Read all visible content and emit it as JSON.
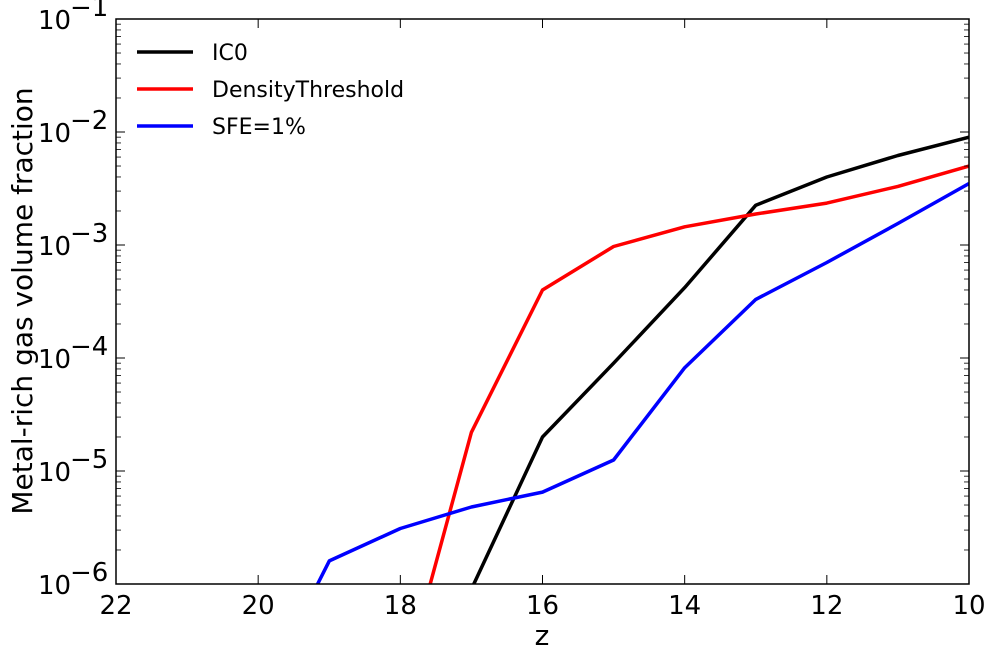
{
  "chart_data": {
    "type": "line",
    "xlabel": "z",
    "ylabel": "Metal-rich gas volume fraction",
    "xlim": [
      22,
      10
    ],
    "ylim": [
      1e-06,
      0.1
    ],
    "yscale": "log",
    "x_ticks": [
      22,
      20,
      18,
      16,
      14,
      12,
      10
    ],
    "x_tick_labels": [
      "22",
      "20",
      "18",
      "16",
      "14",
      "12",
      "10"
    ],
    "y_tick_exponents": [
      -6,
      -5,
      -4,
      -3,
      -2,
      -1
    ],
    "y_tick_base": "10",
    "y_tick_sup": [
      "−6",
      "−5",
      "−4",
      "−3",
      "−2",
      "−1"
    ],
    "legend_position": "top-left",
    "series": [
      {
        "name": "IC0",
        "color": "#000000",
        "x": [
          17.0,
          16.0,
          15.0,
          14.0,
          13.0,
          12.0,
          11.0,
          10.0
        ],
        "y": [
          9e-07,
          2e-05,
          9e-05,
          0.00042,
          0.00225,
          0.004,
          0.0062,
          0.009
        ]
      },
      {
        "name": "DensityThreshold",
        "color": "#ff0000",
        "x": [
          17.6,
          17.0,
          16.0,
          15.0,
          14.0,
          13.0,
          12.0,
          11.0,
          10.0
        ],
        "y": [
          9e-07,
          2.2e-05,
          0.0004,
          0.00097,
          0.00145,
          0.00188,
          0.00235,
          0.0033,
          0.005
        ]
      },
      {
        "name": "SFE=1%",
        "color": "#0000ff",
        "x": [
          19.2,
          19.0,
          18.0,
          17.0,
          16.0,
          15.0,
          14.0,
          13.0,
          12.0,
          11.0,
          10.0
        ],
        "y": [
          9e-07,
          1.6e-06,
          3.1e-06,
          4.8e-06,
          6.5e-06,
          1.25e-05,
          8.2e-05,
          0.00033,
          0.0007,
          0.00155,
          0.0035
        ]
      }
    ]
  }
}
